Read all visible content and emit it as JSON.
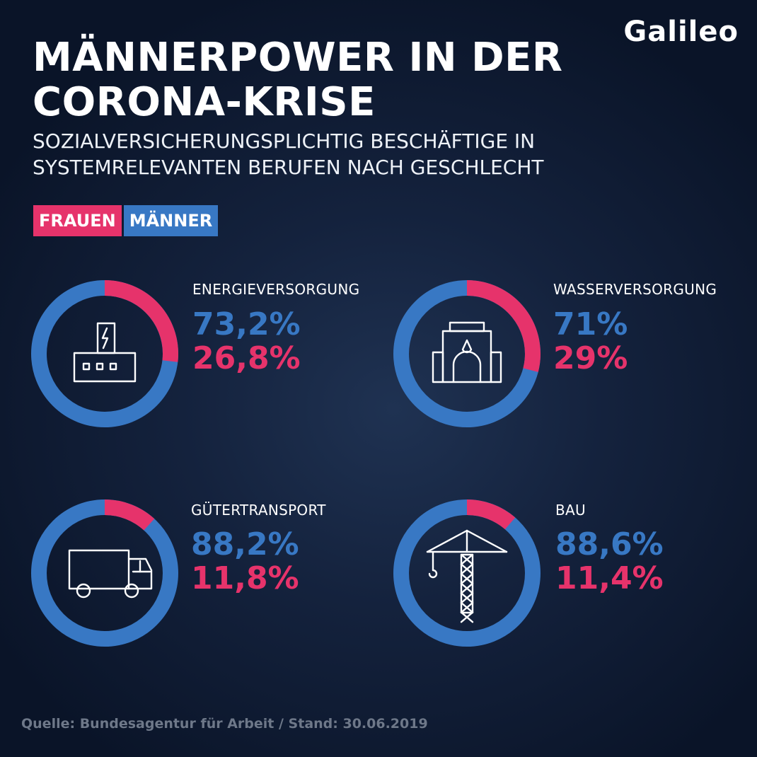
{
  "header": {
    "title_line1": "MÄNNERPOWER IN DER",
    "title_line2": "CORONA-KRISE",
    "subtitle_line1": "SOZIALVERSICHERUNGSPLICHTIG BESCHÄFTIGE IN",
    "subtitle_line2": "SYSTEMRELEVANTEN BERUFEN NACH GESCHLECHT",
    "logo": "Galileo"
  },
  "legend": {
    "women": "FRAUEN",
    "men": "MÄNNER"
  },
  "colors": {
    "women": "#e6336b",
    "men": "#3878c4",
    "background": "#0f1d36"
  },
  "chart_data": {
    "type": "pie",
    "style": "donut",
    "series_labels": [
      "MÄNNER",
      "FRAUEN"
    ],
    "items": [
      {
        "category": "ENERGIEVERSORGUNG",
        "icon": "power-plant-icon",
        "men": 73.2,
        "women": 26.8,
        "men_label": "73,2%",
        "women_label": "26,8%"
      },
      {
        "category": "WASSERVERSORGUNG",
        "icon": "waterworks-icon",
        "men": 71,
        "women": 29,
        "men_label": "71%",
        "women_label": "29%"
      },
      {
        "category": "GÜTERTRANSPORT",
        "icon": "truck-icon",
        "men": 88.2,
        "women": 11.8,
        "men_label": "88,2%",
        "women_label": "11,8%"
      },
      {
        "category": "BAU",
        "icon": "crane-icon",
        "men": 88.6,
        "women": 11.4,
        "men_label": "88,6%",
        "women_label": "11,4%"
      }
    ]
  },
  "footer": {
    "source": "Quelle: Bundesagentur für Arbeit / Stand: 30.06.2019"
  }
}
